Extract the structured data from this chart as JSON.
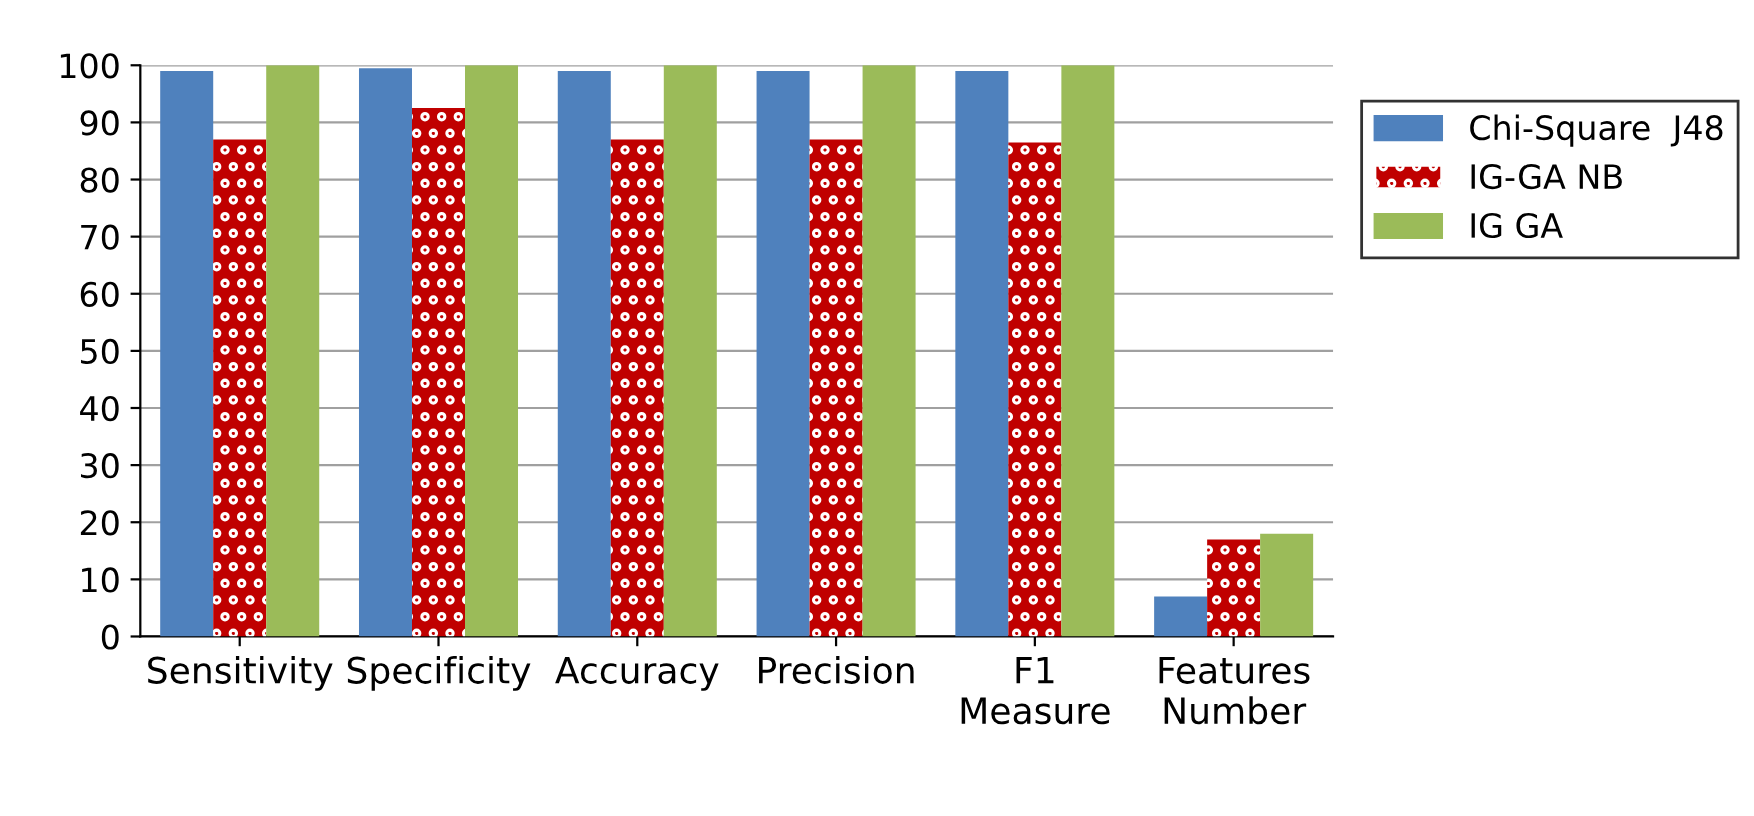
{
  "chart_data": {
    "type": "bar",
    "categories": [
      "Sensitivity",
      "Specificity",
      "Accuracy",
      "Precision",
      "F1\nMeasure",
      "Features\nNumber"
    ],
    "series": [
      {
        "name": "Chi-Square  J48",
        "color": "#4f81bd",
        "values": [
          99,
          99.5,
          99,
          99,
          99,
          7
        ]
      },
      {
        "name": "IG-GA NB",
        "color": "#c00000",
        "values": [
          87,
          92.5,
          87,
          87,
          86.5,
          17
        ]
      },
      {
        "name": "IG GA",
        "color": "#9bbb59",
        "values": [
          100,
          100,
          100,
          100,
          100,
          18
        ]
      }
    ],
    "ylim": [
      0,
      100
    ],
    "yticks": [
      0,
      10,
      20,
      30,
      40,
      50,
      60,
      70,
      80,
      90,
      100
    ],
    "grid": "y",
    "legend": "right"
  }
}
